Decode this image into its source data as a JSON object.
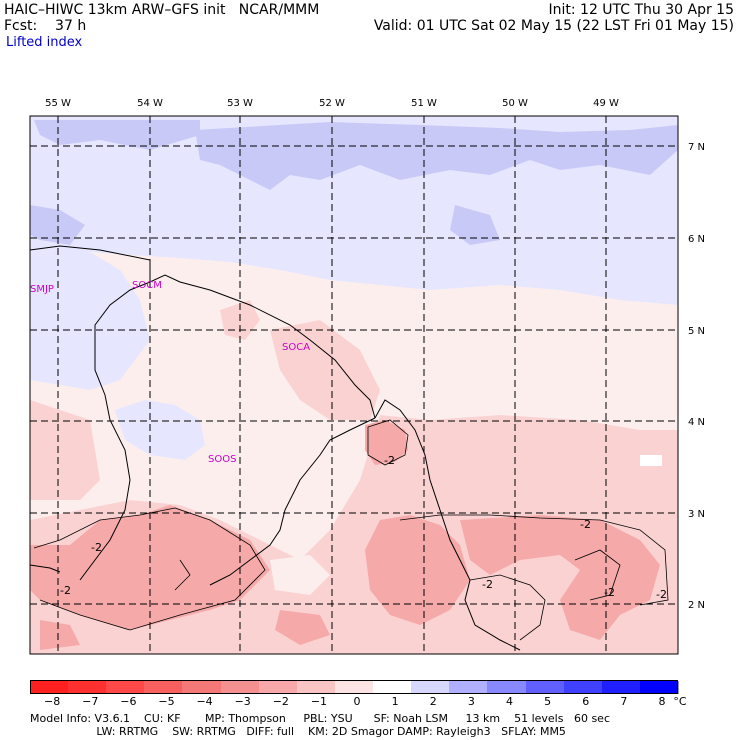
{
  "header": {
    "title_left": "HAIC–HIWC 13km ARW–GFS init   NCAR/MMM",
    "fcst": "Fcst:    37 h",
    "field": "Lifted index",
    "init": "Init: 12 UTC Thu 30 Apr 15",
    "valid": "Valid: 01 UTC Sat 02 May 15 (22 LST Fri 01 May 15)"
  },
  "map": {
    "longitude_labels": [
      "55 W",
      "54 W",
      "53 W",
      "52 W",
      "51 W",
      "50 W",
      "49 W"
    ],
    "latitude_labels": [
      "7 N",
      "6 N",
      "5 N",
      "4 N",
      "3 N",
      "2 N"
    ],
    "stations": [
      "SMJP",
      "SOCM",
      "SOCA",
      "SOOS"
    ],
    "contour_labels": [
      "-2",
      "-2",
      "-2",
      "-2",
      "-2",
      "-2",
      "-2"
    ],
    "colors": {
      "positive_light": "#e6e6ff",
      "positive_mid": "#c9c9f7",
      "neutral": "#fdeeee",
      "negative_light": "#fbd2d2",
      "negative_mid": "#f5a9a9",
      "station": "#cc00cc"
    }
  },
  "colorbar": {
    "unit": "°C",
    "ticks": [
      "−8",
      "−7",
      "−6",
      "−5",
      "−4",
      "−3",
      "−2",
      "−1",
      "0",
      "1",
      "2",
      "3",
      "4",
      "5",
      "6",
      "7",
      "8"
    ],
    "colors": [
      "#ff2020",
      "#ff3030",
      "#ff4848",
      "#f86060",
      "#f47878",
      "#f49090",
      "#f8a8a8",
      "#f8c4c4",
      "#fde4e4",
      "#ffffff",
      "#d8d8ff",
      "#b0b0ff",
      "#8888ff",
      "#6060ff",
      "#4040ff",
      "#2020ff",
      "#0000ff"
    ]
  },
  "footer": {
    "line1": "Model Info: V3.6.1    CU: KF       MP: Thompson     PBL: YSU      SF: Noah LSM     13 km    51 levels   60 sec",
    "line2": "                   LW: RRTMG    SW: RRTMG   DIFF: full    KM: 2D Smagor DAMP: Rayleigh3   SFLAY: MM5"
  }
}
